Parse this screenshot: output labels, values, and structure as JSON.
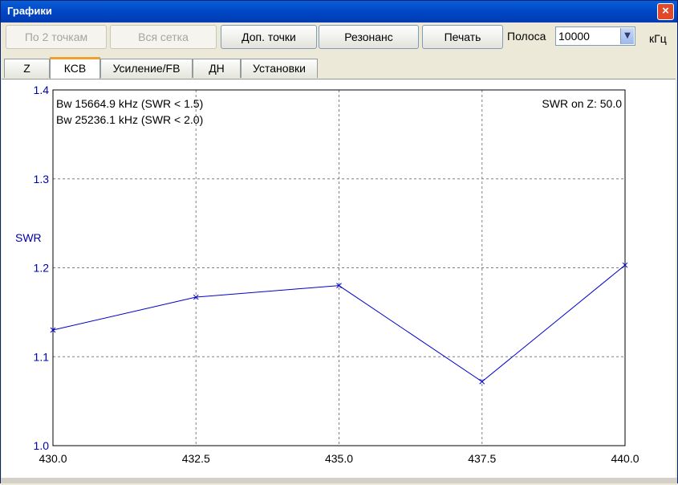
{
  "window": {
    "title": "Графики",
    "close_label": "×"
  },
  "toolbar": {
    "btn_two_points": "По 2 точкам",
    "btn_all_grid": "Вся сетка",
    "btn_extra_points": "Доп. точки",
    "btn_resonance": "Резонанс",
    "btn_print": "Печать",
    "band_label": "Полоса",
    "band_value": "10000",
    "band_unit": "кГц"
  },
  "tabs": [
    {
      "label": "Z",
      "active": false
    },
    {
      "label": "КСВ",
      "active": true
    },
    {
      "label": "Усиление/FB",
      "active": false
    },
    {
      "label": "ДН",
      "active": false
    },
    {
      "label": "Установки",
      "active": false
    }
  ],
  "colors": {
    "series": "#0000cc",
    "axis_text": "#0000aa",
    "grid": "#808080"
  },
  "chart_data": {
    "type": "line",
    "ylabel": "SWR",
    "xlabel": "",
    "x": [
      430.0,
      432.5,
      435.0,
      437.5,
      440.0
    ],
    "series": [
      {
        "values": [
          1.13,
          1.167,
          1.18,
          1.072,
          1.203
        ]
      }
    ],
    "xlim": [
      430.0,
      440.0
    ],
    "ylim": [
      1.0,
      1.4
    ],
    "x_ticks": [
      "430.0",
      "432.5",
      "435.0",
      "437.5",
      "440.0"
    ],
    "y_ticks": [
      "1.0",
      "1.1",
      "1.2",
      "1.3",
      "1.4"
    ],
    "grid": true,
    "annotations": [
      "Bw 15664.9 kHz (SWR < 1.5)",
      "Bw 25236.1 kHz (SWR < 2.0)"
    ],
    "annotation_right": "SWR on Z: 50.0"
  }
}
